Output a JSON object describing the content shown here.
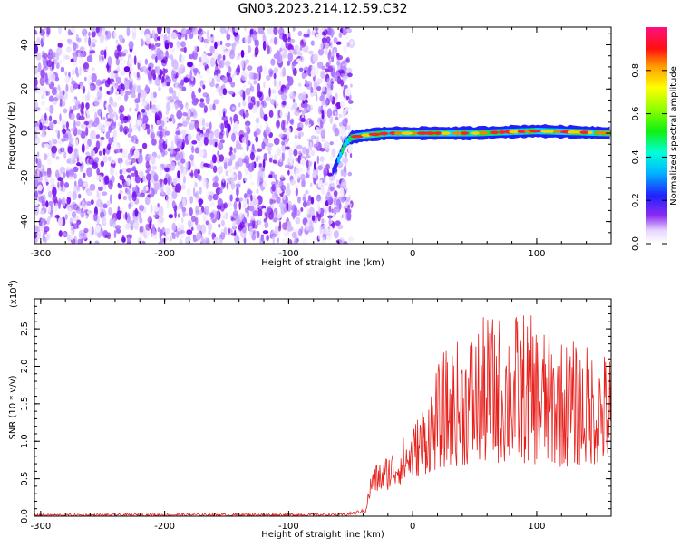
{
  "title": "GN03.2023.214.12.59.C32",
  "colors": {
    "spectrogram_noise": "#8a2be2",
    "snr_line": "#e8201c",
    "frame": "#000000"
  },
  "chart_data": [
    {
      "type": "heatmap",
      "xlabel": "Height of straight line (km)",
      "ylabel": "Frequency (Hz)",
      "xlim": [
        -305,
        160
      ],
      "ylim": [
        -50,
        48
      ],
      "x_ticks": [
        -300,
        -200,
        -100,
        0,
        100
      ],
      "y_ticks": [
        -40,
        -20,
        0,
        20,
        40
      ],
      "noise_region_x": [
        -305,
        -55
      ],
      "signal_region_x": [
        -55,
        160
      ],
      "signal_track": [
        {
          "x": -65,
          "y": -18
        },
        {
          "x": -60,
          "y": -12
        },
        {
          "x": -55,
          "y": -5
        },
        {
          "x": -50,
          "y": -2
        },
        {
          "x": -40,
          "y": -1
        },
        {
          "x": -20,
          "y": 0
        },
        {
          "x": 0,
          "y": 0
        },
        {
          "x": 50,
          "y": 0
        },
        {
          "x": 100,
          "y": 1
        },
        {
          "x": 160,
          "y": 0
        }
      ],
      "colorbar": {
        "label": "Normalized spectral amplitude",
        "range": [
          0,
          1
        ],
        "ticks": [
          "0.0",
          "0.2",
          "0.4",
          "0.6",
          "0.8"
        ],
        "tick_values": [
          0.0,
          0.2,
          0.4,
          0.6,
          0.8
        ],
        "colormap": "rainbow"
      }
    },
    {
      "type": "line",
      "xlabel": "Height of straight line (km)",
      "ylabel": "SNR (10 * v/v)",
      "y_multiplier": "(x10",
      "y_multiplier_exp": "4",
      "xlim": [
        -305,
        160
      ],
      "ylim": [
        0,
        2.9
      ],
      "x_ticks": [
        -300,
        -200,
        -100,
        0,
        100
      ],
      "y_ticks": [
        "0.0",
        "0.5",
        "1.0",
        "1.5",
        "2.0",
        "2.5"
      ],
      "y_tick_values": [
        0.0,
        0.5,
        1.0,
        1.5,
        2.0,
        2.5
      ],
      "envelope": [
        {
          "x": -305,
          "low": 0.0,
          "high": 0.03
        },
        {
          "x": -55,
          "low": 0.0,
          "high": 0.04
        },
        {
          "x": -38,
          "low": 0.05,
          "high": 0.1
        },
        {
          "x": -33,
          "low": 0.3,
          "high": 0.65
        },
        {
          "x": -20,
          "low": 0.35,
          "high": 0.85
        },
        {
          "x": 0,
          "low": 0.5,
          "high": 1.2
        },
        {
          "x": 25,
          "low": 0.65,
          "high": 2.2
        },
        {
          "x": 60,
          "low": 0.7,
          "high": 2.7
        },
        {
          "x": 90,
          "low": 0.7,
          "high": 2.75
        },
        {
          "x": 120,
          "low": 0.65,
          "high": 2.4
        },
        {
          "x": 160,
          "low": 0.7,
          "high": 2.2
        }
      ],
      "series": [
        {
          "values_description": "",
          "color": "#e8201c"
        }
      ]
    }
  ]
}
